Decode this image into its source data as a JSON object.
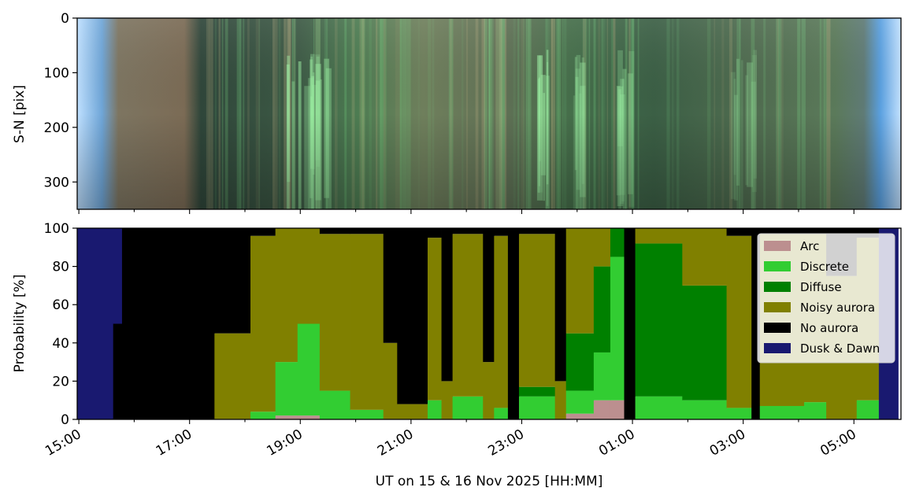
{
  "chart_data": [
    {
      "type": "heatmap",
      "description_panel": "keogram",
      "ylabel": "S-N [pix]",
      "ylim": [
        350,
        0
      ],
      "yticks": [
        0,
        100,
        200,
        300
      ],
      "xlim_hours": [
        15.0,
        29.8
      ]
    },
    {
      "type": "area",
      "ylabel": "Probability [%]",
      "xlabel": "UT on 15 & 16 Nov 2025 [HH:MM]",
      "ylim": [
        0,
        100
      ],
      "yticks": [
        0,
        20,
        40,
        60,
        80,
        100
      ],
      "xticks": [
        {
          "hour": 15,
          "label": "15:00"
        },
        {
          "hour": 17,
          "label": "17:00"
        },
        {
          "hour": 19,
          "label": "19:00"
        },
        {
          "hour": 21,
          "label": "21:00"
        },
        {
          "hour": 23,
          "label": "23:00"
        },
        {
          "hour": 25,
          "label": "01:00"
        },
        {
          "hour": 27,
          "label": "03:00"
        },
        {
          "hour": 29,
          "label": "05:00"
        }
      ],
      "legend_position": "upper-right",
      "series": [
        {
          "name": "Arc",
          "color": "#bc8f8f"
        },
        {
          "name": "Discrete",
          "color": "#32cd32"
        },
        {
          "name": "Diffuse",
          "color": "#008000"
        },
        {
          "name": "Noisy aurora",
          "color": "#808000"
        },
        {
          "name": "No aurora",
          "color": "#000000"
        },
        {
          "name": "Dusk & Dawn",
          "color": "#191970"
        }
      ],
      "segments": [
        {
          "start": 14.9,
          "end": 15.62,
          "Dusk & Dawn": 100
        },
        {
          "start": 15.62,
          "end": 15.78,
          "Dusk & Dawn": 50,
          "No aurora": 50
        },
        {
          "start": 15.78,
          "end": 17.45,
          "No aurora": 100
        },
        {
          "start": 17.45,
          "end": 18.1,
          "No aurora": 55,
          "Noisy aurora": 45
        },
        {
          "start": 18.1,
          "end": 18.55,
          "Noisy aurora": 92,
          "Discrete": 4,
          "No aurora": 4
        },
        {
          "start": 18.55,
          "end": 18.95,
          "Noisy aurora": 70,
          "Discrete": 28,
          "Arc": 2
        },
        {
          "start": 18.95,
          "end": 19.35,
          "Noisy aurora": 50,
          "Discrete": 48,
          "Arc": 2
        },
        {
          "start": 19.35,
          "end": 19.9,
          "Noisy aurora": 82,
          "Discrete": 15,
          "No aurora": 3
        },
        {
          "start": 19.9,
          "end": 20.5,
          "Noisy aurora": 92,
          "Discrete": 5,
          "No aurora": 3
        },
        {
          "start": 20.5,
          "end": 20.75,
          "Noisy aurora": 40,
          "No aurora": 60
        },
        {
          "start": 20.75,
          "end": 21.3,
          "No aurora": 92,
          "Noisy aurora": 8
        },
        {
          "start": 21.3,
          "end": 21.55,
          "Noisy aurora": 85,
          "Discrete": 10,
          "No aurora": 5
        },
        {
          "start": 21.55,
          "end": 21.75,
          "No aurora": 80,
          "Noisy aurora": 20
        },
        {
          "start": 21.75,
          "end": 22.3,
          "Noisy aurora": 85,
          "Discrete": 12,
          "No aurora": 3
        },
        {
          "start": 22.3,
          "end": 22.5,
          "No aurora": 70,
          "Noisy aurora": 30
        },
        {
          "start": 22.5,
          "end": 22.75,
          "Noisy aurora": 90,
          "Discrete": 6,
          "No aurora": 4
        },
        {
          "start": 22.75,
          "end": 22.95,
          "No aurora": 100
        },
        {
          "start": 22.95,
          "end": 23.6,
          "Noisy aurora": 80,
          "Discrete": 12,
          "Diffuse": 5,
          "No aurora": 3
        },
        {
          "start": 23.6,
          "end": 23.8,
          "No aurora": 80,
          "Noisy aurora": 20
        },
        {
          "start": 23.8,
          "end": 24.3,
          "Noisy aurora": 55,
          "Diffuse": 30,
          "Discrete": 12,
          "Arc": 3
        },
        {
          "start": 24.3,
          "end": 24.6,
          "Diffuse": 45,
          "Discrete": 25,
          "Arc": 10,
          "Noisy aurora": 20
        },
        {
          "start": 24.6,
          "end": 24.85,
          "Discrete": 75,
          "Diffuse": 15,
          "Arc": 10
        },
        {
          "start": 24.85,
          "end": 25.05,
          "No aurora": 100
        },
        {
          "start": 25.05,
          "end": 25.9,
          "Diffuse": 80,
          "Discrete": 12,
          "Noisy aurora": 8
        },
        {
          "start": 25.9,
          "end": 26.7,
          "Diffuse": 60,
          "Noisy aurora": 30,
          "Discrete": 10
        },
        {
          "start": 26.7,
          "end": 27.15,
          "Noisy aurora": 90,
          "Discrete": 6,
          "No aurora": 4
        },
        {
          "start": 27.15,
          "end": 27.3,
          "No aurora": 100
        },
        {
          "start": 27.3,
          "end": 28.1,
          "Noisy aurora": 90,
          "Discrete": 7,
          "No aurora": 3
        },
        {
          "start": 28.1,
          "end": 28.5,
          "Noisy aurora": 88,
          "Discrete": 9,
          "No aurora": 3
        },
        {
          "start": 28.5,
          "end": 29.05,
          "Noisy aurora": 75,
          "No aurora": 25
        },
        {
          "start": 29.05,
          "end": 29.45,
          "Noisy aurora": 85,
          "Discrete": 10,
          "No aurora": 5
        },
        {
          "start": 29.45,
          "end": 29.8,
          "Dusk & Dawn": 100
        }
      ]
    }
  ]
}
